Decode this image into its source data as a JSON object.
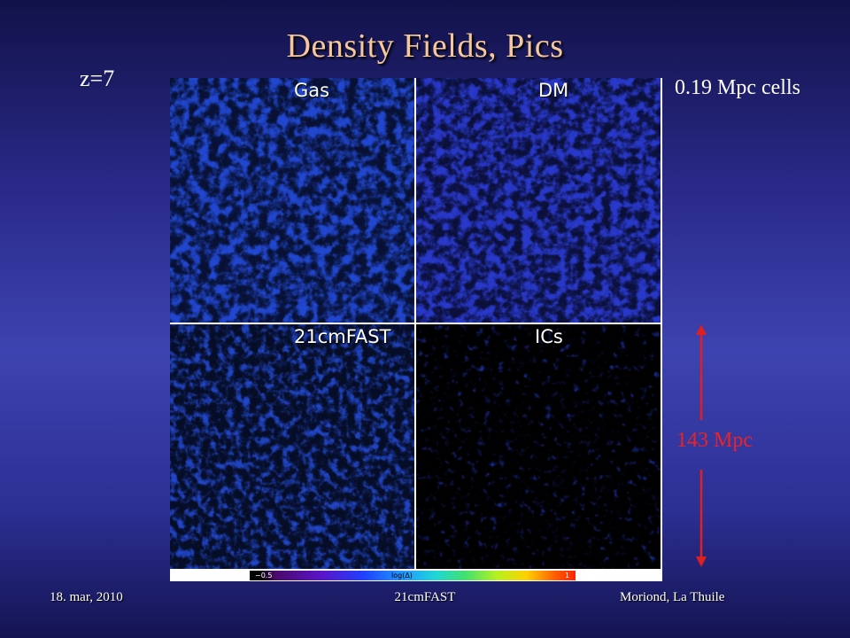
{
  "slide": {
    "title": "Density Fields, Pics",
    "redshift_label": "z=7",
    "cell_size_label": "0.19 Mpc cells",
    "box_size_label": "143 Mpc"
  },
  "figure": {
    "panels": [
      {
        "label": "Gas",
        "style": "gas"
      },
      {
        "label": "DM",
        "style": "dm"
      },
      {
        "label": "21cmFAST",
        "style": "fast"
      },
      {
        "label": "ICs",
        "style": "ics"
      }
    ],
    "colorbar": {
      "min_label": "−0.5",
      "axis_label": "log(Δ)",
      "max_label": "1"
    }
  },
  "footer": {
    "date": "18. mar, 2010",
    "center": "21cmFAST",
    "venue": "Moriond, La Thuile"
  },
  "colors": {
    "title": "#f5c79a",
    "scale_arrow": "#e02020",
    "background_top": "#12124a",
    "background_mid": "#3d43b0"
  }
}
